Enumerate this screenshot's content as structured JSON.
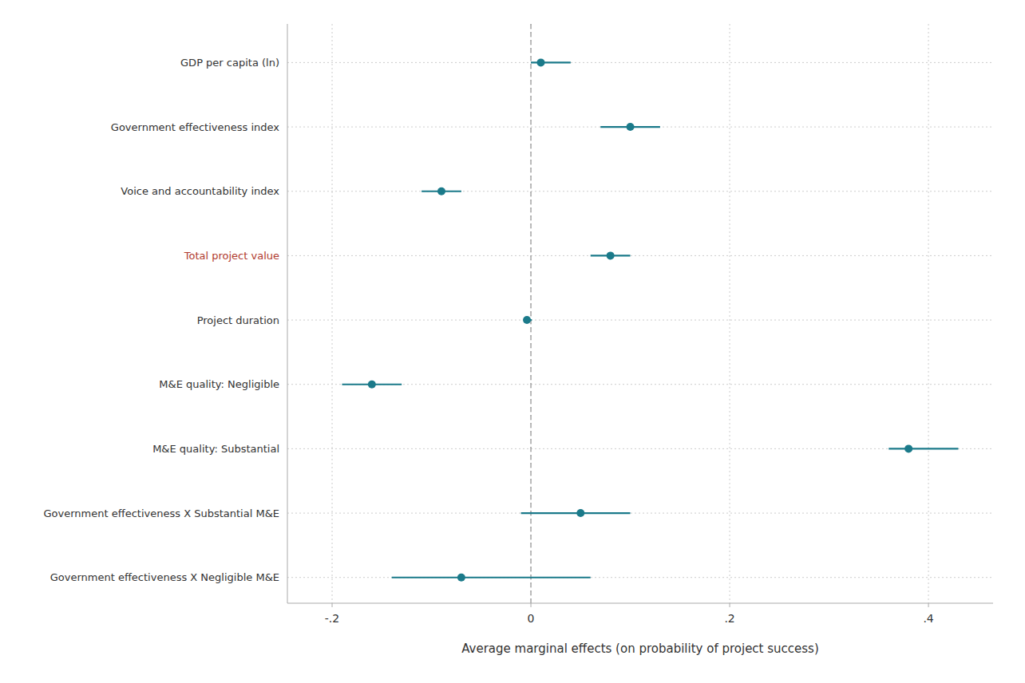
{
  "chart_data": {
    "type": "dot",
    "orientation": "horizontal",
    "x_label": "Average marginal effects (on probability of project success)",
    "categories": [
      "GDP per capita (ln)",
      "Government effectiveness index",
      "Voice and accountability index",
      "Total project value",
      "Project duration",
      "M&E quality: Negligible",
      "M&E quality: Substantial",
      "Government effectiveness X Substantial M&E",
      "Government effectiveness X Negligible M&E"
    ],
    "values": [
      0.01,
      0.1,
      -0.09,
      0.08,
      -0.004,
      -0.16,
      0.38,
      0.05,
      -0.07
    ],
    "ci_low": [
      0.0,
      0.07,
      -0.11,
      0.06,
      -0.005,
      -0.19,
      0.36,
      -0.01,
      -0.14
    ],
    "ci_high": [
      0.04,
      0.13,
      -0.07,
      0.1,
      0.001,
      -0.13,
      0.43,
      0.1,
      0.06
    ],
    "color": "#1b7a8a",
    "label_colors": [
      "#333333",
      "#333333",
      "#333333",
      "#b03a2e",
      "#333333",
      "#333333",
      "#333333",
      "#333333",
      "#333333"
    ],
    "xlim": [
      -0.245,
      0.465
    ],
    "xticks": [
      {
        "value": -0.2,
        "label": "-.2"
      },
      0,
      {
        "value": 0.2,
        "label": ".2"
      },
      {
        "value": 0.4,
        "label": ".4"
      }
    ],
    "reference_line": 0,
    "grid": true
  }
}
